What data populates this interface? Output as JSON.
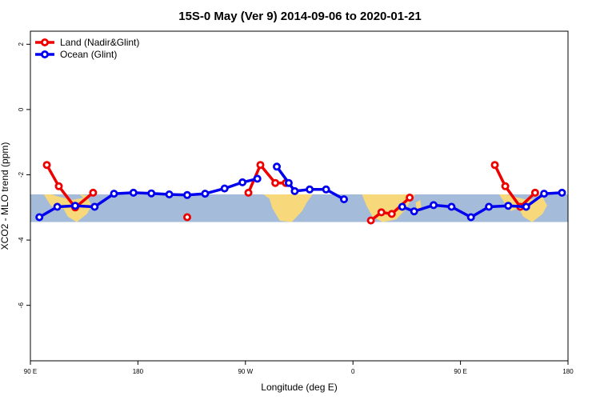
{
  "chart_data": {
    "type": "line",
    "title": "15S-0 May (Ver 9)   2014-09-06 to 2020-01-21",
    "xlabel": "Longitude (deg E)",
    "ylabel": "XCO2 - MLO trend (ppm)",
    "xlim": [
      90,
      450
    ],
    "ylim": [
      -7.7,
      2.4
    ],
    "grid": false,
    "legend_position": "top-left",
    "x_ticks": [
      {
        "value": 90,
        "label": "90 E"
      },
      {
        "value": 162,
        "label": "180"
      },
      {
        "value": 234,
        "label": "90 W"
      },
      {
        "value": 306,
        "label": "0"
      },
      {
        "value": 378,
        "label": "90 E"
      },
      {
        "value": 450,
        "label": "180"
      }
    ],
    "y_ticks": [
      {
        "value": 2,
        "label": "2"
      },
      {
        "value": 0,
        "label": "0"
      },
      {
        "value": -2,
        "label": "-2"
      },
      {
        "value": -4,
        "label": "-4"
      },
      {
        "value": -6,
        "label": "-6"
      }
    ],
    "map_band": {
      "y_range": [
        -3.45,
        -2.6
      ],
      "ocean_color": "#a4bcd9",
      "land_color": "#f7d87a"
    },
    "series": [
      {
        "name": "Land (Nadir&Glint)",
        "color": "#ee0000",
        "segments": [
          [
            [
              101,
              -1.7
            ],
            [
              109,
              -2.35
            ],
            [
              120,
              -3.0
            ],
            [
              132,
              -2.55
            ]
          ],
          [
            [
              195,
              -3.3
            ]
          ],
          [
            [
              236,
              -2.55
            ],
            [
              244,
              -1.7
            ],
            [
              254,
              -2.25
            ],
            [
              261,
              -2.25
            ]
          ],
          [
            [
              318,
              -3.4
            ],
            [
              325,
              -3.15
            ],
            [
              332,
              -3.2
            ],
            [
              344,
              -2.7
            ]
          ],
          [
            [
              401,
              -1.7
            ],
            [
              408,
              -2.35
            ],
            [
              418,
              -2.98
            ],
            [
              428,
              -2.55
            ]
          ]
        ]
      },
      {
        "name": "Ocean (Glint)",
        "color": "#0000ee",
        "segments": [
          [
            [
              96,
              -3.3
            ],
            [
              108,
              -2.98
            ],
            [
              120,
              -2.95
            ],
            [
              133,
              -2.98
            ],
            [
              146,
              -2.58
            ],
            [
              159,
              -2.55
            ],
            [
              171,
              -2.57
            ],
            [
              183,
              -2.6
            ],
            [
              195,
              -2.62
            ],
            [
              207,
              -2.58
            ],
            [
              220,
              -2.42
            ],
            [
              232,
              -2.23
            ],
            [
              242,
              -2.12
            ]
          ],
          [
            [
              255,
              -1.75
            ],
            [
              263,
              -2.25
            ],
            [
              267,
              -2.5
            ],
            [
              277,
              -2.45
            ],
            [
              288,
              -2.45
            ],
            [
              300,
              -2.75
            ]
          ],
          [
            [
              339,
              -2.98
            ],
            [
              347,
              -3.12
            ],
            [
              360,
              -2.93
            ],
            [
              372,
              -2.98
            ],
            [
              385,
              -3.3
            ],
            [
              397,
              -2.98
            ],
            [
              410,
              -2.95
            ],
            [
              422,
              -2.98
            ],
            [
              434,
              -2.58
            ],
            [
              446,
              -2.55
            ]
          ]
        ]
      }
    ]
  }
}
